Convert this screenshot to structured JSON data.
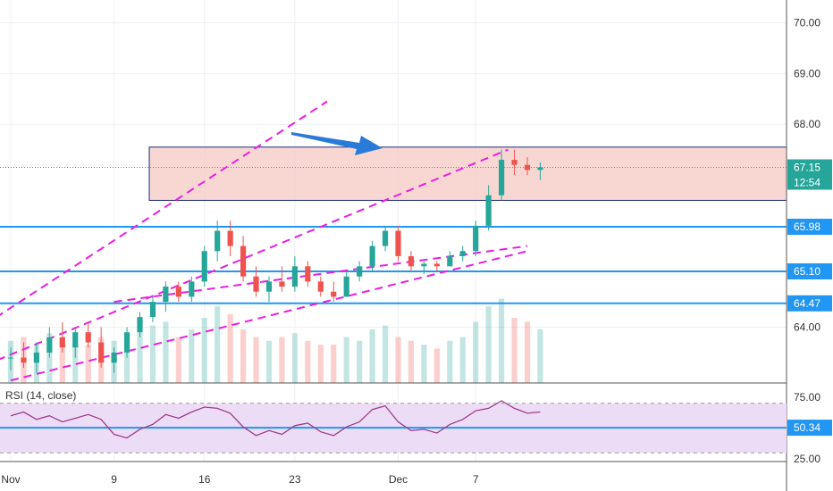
{
  "chart_data": {
    "type": "candlestick",
    "price_axis": {
      "ticks": [
        {
          "value": 70.0,
          "label": "70.00"
        },
        {
          "value": 69.0,
          "label": "69.00"
        },
        {
          "value": 68.0,
          "label": "68.00"
        },
        {
          "value": 64.0,
          "label": "64.00"
        }
      ],
      "range": [
        62.9,
        70.45
      ]
    },
    "time_axis": {
      "ticks": [
        {
          "day": 0,
          "label": "Nov"
        },
        {
          "day": 8,
          "label": "9"
        },
        {
          "day": 15,
          "label": "16"
        },
        {
          "day": 22,
          "label": "23"
        },
        {
          "day": 30,
          "label": "Dec"
        },
        {
          "day": 36,
          "label": "7"
        }
      ]
    },
    "candles": [
      {
        "o": 63.4,
        "h": 63.6,
        "l": 63.15,
        "c": 63.4
      },
      {
        "o": 63.4,
        "h": 63.7,
        "l": 63.2,
        "c": 63.3
      },
      {
        "o": 63.3,
        "h": 63.7,
        "l": 63.1,
        "c": 63.5
      },
      {
        "o": 63.5,
        "h": 64.0,
        "l": 63.4,
        "c": 63.8
      },
      {
        "o": 63.8,
        "h": 64.1,
        "l": 63.5,
        "c": 63.6
      },
      {
        "o": 63.6,
        "h": 64.0,
        "l": 63.4,
        "c": 63.9
      },
      {
        "o": 63.9,
        "h": 64.1,
        "l": 63.6,
        "c": 63.7
      },
      {
        "o": 63.7,
        "h": 64.0,
        "l": 63.2,
        "c": 63.3
      },
      {
        "o": 63.3,
        "h": 63.6,
        "l": 63.1,
        "c": 63.5
      },
      {
        "o": 63.5,
        "h": 64.0,
        "l": 63.4,
        "c": 63.9
      },
      {
        "o": 63.9,
        "h": 64.3,
        "l": 63.8,
        "c": 64.2
      },
      {
        "o": 64.2,
        "h": 64.6,
        "l": 64.1,
        "c": 64.5
      },
      {
        "o": 64.5,
        "h": 64.9,
        "l": 64.3,
        "c": 64.8
      },
      {
        "o": 64.8,
        "h": 64.9,
        "l": 64.5,
        "c": 64.6
      },
      {
        "o": 64.6,
        "h": 65.0,
        "l": 64.5,
        "c": 64.9
      },
      {
        "o": 64.9,
        "h": 65.6,
        "l": 64.8,
        "c": 65.5
      },
      {
        "o": 65.5,
        "h": 66.1,
        "l": 65.3,
        "c": 65.9
      },
      {
        "o": 65.9,
        "h": 66.1,
        "l": 65.4,
        "c": 65.6
      },
      {
        "o": 65.6,
        "h": 65.8,
        "l": 64.9,
        "c": 65.0
      },
      {
        "o": 65.0,
        "h": 65.2,
        "l": 64.6,
        "c": 64.7
      },
      {
        "o": 64.7,
        "h": 65.0,
        "l": 64.5,
        "c": 64.9
      },
      {
        "o": 64.9,
        "h": 65.2,
        "l": 64.7,
        "c": 64.8
      },
      {
        "o": 64.8,
        "h": 65.4,
        "l": 64.7,
        "c": 65.2
      },
      {
        "o": 65.2,
        "h": 65.3,
        "l": 64.8,
        "c": 64.9
      },
      {
        "o": 64.9,
        "h": 65.0,
        "l": 64.6,
        "c": 64.7
      },
      {
        "o": 64.7,
        "h": 64.9,
        "l": 64.5,
        "c": 64.6
      },
      {
        "o": 64.6,
        "h": 65.1,
        "l": 64.6,
        "c": 65.0
      },
      {
        "o": 65.0,
        "h": 65.3,
        "l": 64.9,
        "c": 65.2
      },
      {
        "o": 65.2,
        "h": 65.7,
        "l": 65.1,
        "c": 65.6
      },
      {
        "o": 65.6,
        "h": 66.0,
        "l": 65.5,
        "c": 65.9
      },
      {
        "o": 65.9,
        "h": 66.0,
        "l": 65.3,
        "c": 65.4
      },
      {
        "o": 65.4,
        "h": 65.5,
        "l": 65.1,
        "c": 65.2
      },
      {
        "o": 65.2,
        "h": 65.3,
        "l": 65.05,
        "c": 65.25
      },
      {
        "o": 65.25,
        "h": 65.3,
        "l": 65.1,
        "c": 65.2
      },
      {
        "o": 65.2,
        "h": 65.5,
        "l": 65.2,
        "c": 65.4
      },
      {
        "o": 65.4,
        "h": 65.6,
        "l": 65.3,
        "c": 65.5
      },
      {
        "o": 65.5,
        "h": 66.1,
        "l": 65.4,
        "c": 66.0
      },
      {
        "o": 66.0,
        "h": 66.8,
        "l": 65.9,
        "c": 66.6
      },
      {
        "o": 66.6,
        "h": 67.5,
        "l": 66.5,
        "c": 67.3
      },
      {
        "o": 67.3,
        "h": 67.5,
        "l": 67.0,
        "c": 67.2
      },
      {
        "o": 67.2,
        "h": 67.35,
        "l": 67.0,
        "c": 67.1
      },
      {
        "o": 67.1,
        "h": 67.25,
        "l": 66.9,
        "c": 67.15
      }
    ],
    "volume": [
      0.55,
      0.6,
      0.5,
      0.65,
      0.6,
      0.55,
      0.5,
      0.6,
      0.55,
      0.65,
      0.7,
      0.75,
      0.8,
      0.6,
      0.7,
      0.85,
      1.0,
      0.9,
      0.7,
      0.6,
      0.55,
      0.6,
      0.65,
      0.55,
      0.5,
      0.5,
      0.6,
      0.55,
      0.7,
      0.75,
      0.6,
      0.55,
      0.5,
      0.45,
      0.55,
      0.6,
      0.8,
      1.0,
      1.1,
      0.85,
      0.8,
      0.7
    ],
    "highlight_zone": {
      "top": 67.55,
      "bottom": 66.5
    },
    "horizontal_levels": [
      65.98,
      65.1,
      64.47
    ],
    "price_labels": [
      {
        "value": 65.98,
        "label": "65.98"
      },
      {
        "value": 65.1,
        "label": "65.10"
      },
      {
        "value": 64.47,
        "label": "64.47"
      }
    ],
    "current_price": {
      "value": 67.15,
      "label": "67.15",
      "countdown": "12:54"
    },
    "trendlines": [
      {
        "from": {
          "day": -2,
          "price": 64.05
        },
        "to": {
          "day": 24.5,
          "price": 68.45
        }
      },
      {
        "from": {
          "day": -2,
          "price": 63.25
        },
        "to": {
          "day": 38.5,
          "price": 67.5
        }
      },
      {
        "from": {
          "day": 8,
          "price": 64.5
        },
        "to": {
          "day": 40,
          "price": 65.6
        }
      },
      {
        "from": {
          "day": 0,
          "price": 62.95
        },
        "to": {
          "day": 40,
          "price": 65.5
        }
      }
    ],
    "rsi": {
      "title": "RSI (14, close)",
      "ticks": [
        {
          "value": 75,
          "label": "75.00"
        },
        {
          "value": 25,
          "label": "25.00"
        }
      ],
      "range": [
        23,
        85
      ],
      "band": [
        30,
        70
      ],
      "level": {
        "value": 50.34,
        "label": "50.34"
      },
      "values": [
        60,
        63,
        57,
        60,
        55,
        58,
        61,
        57,
        45,
        42,
        49,
        53,
        61,
        58,
        63,
        67,
        66,
        62,
        51,
        44,
        48,
        45,
        52,
        54,
        47,
        44,
        51,
        55,
        65,
        68,
        55,
        48,
        49,
        46,
        53,
        57,
        64,
        66,
        72,
        66,
        62,
        63
      ]
    },
    "colors": {
      "up": "#26a69a",
      "down": "#ef5350",
      "level_line": "#2196f3",
      "trendline": "#e91ee1",
      "zone_fill": "#f5c9c4",
      "zone_border": "#1e2a7a",
      "rsi_line": "#9c3f8b",
      "rsi_band": "#eddcf5",
      "arrow": "#2a7bd9",
      "current_price_badge": "#26a69a"
    }
  }
}
